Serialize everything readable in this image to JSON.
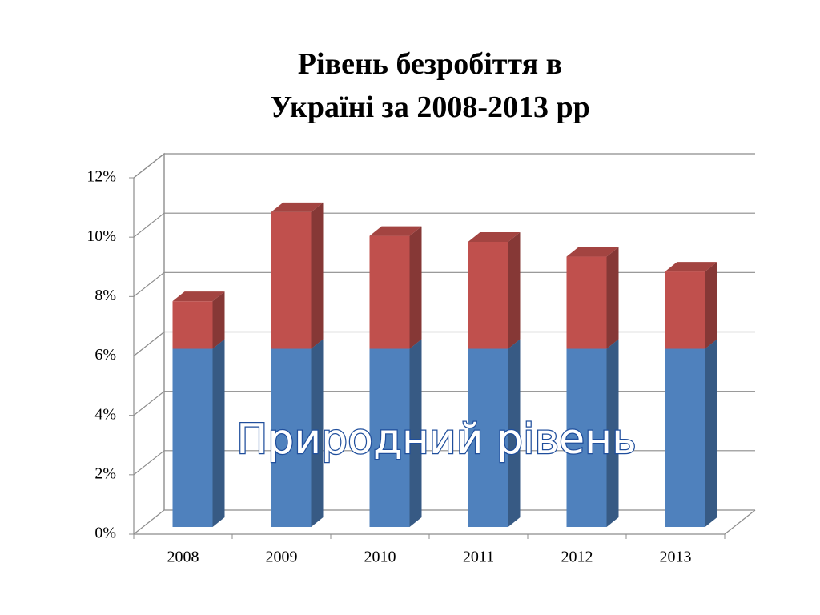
{
  "chart_data": {
    "type": "bar",
    "stacked": true,
    "three_d": true,
    "title": [
      "Рівень безробіття в",
      "Україні за 2008-2013 рр"
    ],
    "annotation": "Природний рівень",
    "categories": [
      "2008",
      "2009",
      "2010",
      "2011",
      "2012",
      "2013"
    ],
    "series": [
      {
        "color": "#4f81bd",
        "values": [
          6,
          6,
          6,
          6,
          6,
          6
        ]
      },
      {
        "color": "#c0504d",
        "values": [
          1.6,
          4.6,
          3.8,
          3.6,
          3.1,
          2.6
        ]
      }
    ],
    "ylim": [
      0,
      12
    ],
    "yticks": [
      {
        "value": 0,
        "label": "0%"
      },
      {
        "value": 2,
        "label": "2%"
      },
      {
        "value": 4,
        "label": "4%"
      },
      {
        "value": 6,
        "label": "6%"
      },
      {
        "value": 8,
        "label": "8%"
      },
      {
        "value": 10,
        "label": "10%"
      },
      {
        "value": 12,
        "label": "12%"
      }
    ],
    "grid": true
  }
}
